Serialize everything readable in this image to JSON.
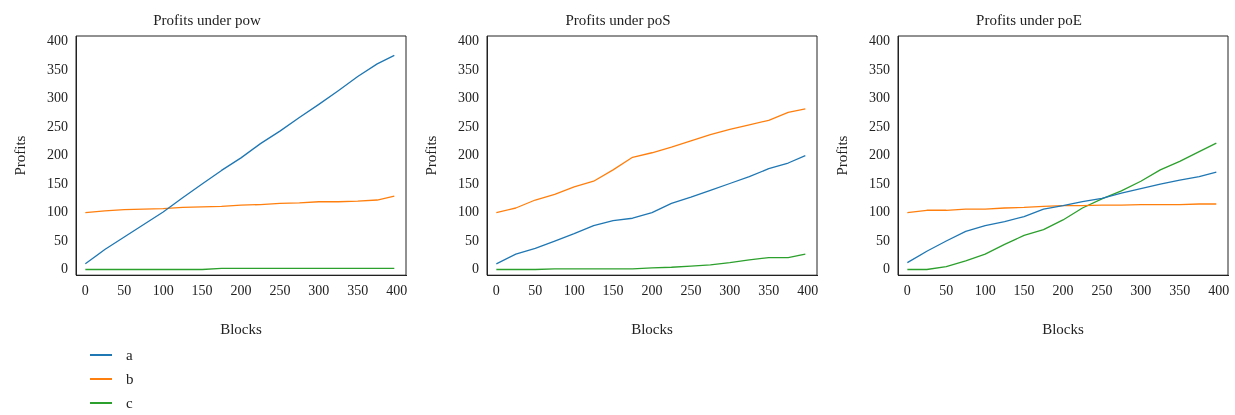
{
  "chart_data": [
    {
      "type": "line",
      "title": "Profits under pow",
      "xlabel": "Blocks",
      "ylabel": "Profits",
      "x": [
        0,
        25,
        50,
        75,
        100,
        125,
        150,
        175,
        200,
        225,
        250,
        275,
        300,
        325,
        350,
        375,
        397
      ],
      "xlim": [
        -12,
        412
      ],
      "ylim": [
        -10,
        410
      ],
      "xticks": [
        0,
        50,
        100,
        150,
        200,
        250,
        300,
        350,
        400
      ],
      "yticks": [
        0,
        50,
        100,
        150,
        200,
        250,
        300,
        350,
        400
      ],
      "grid": false,
      "legend": "bottom left",
      "series": [
        {
          "name": "a",
          "color": "#1f77b4",
          "values": [
            10,
            35,
            57,
            79,
            101,
            126,
            150,
            174,
            196,
            221,
            243,
            267,
            290,
            314,
            339,
            361,
            376
          ]
        },
        {
          "name": "b",
          "color": "#ff7f0e",
          "values": [
            100,
            103,
            105,
            106,
            107,
            109,
            110,
            111,
            113,
            114,
            116,
            117,
            119,
            119,
            120,
            122,
            129
          ]
        },
        {
          "name": "c",
          "color": "#2ca02c",
          "values": [
            0,
            0,
            0,
            0,
            0,
            0,
            0,
            2,
            2,
            2,
            2,
            2,
            2,
            2,
            2,
            2,
            2
          ]
        }
      ]
    },
    {
      "type": "line",
      "title": "Profits under poS",
      "xlabel": "Blocks",
      "ylabel": "Profits",
      "x": [
        0,
        25,
        50,
        75,
        100,
        125,
        150,
        175,
        200,
        225,
        250,
        275,
        300,
        325,
        350,
        375,
        397
      ],
      "xlim": [
        -12,
        412
      ],
      "ylim": [
        -10,
        410
      ],
      "xticks": [
        0,
        50,
        100,
        150,
        200,
        250,
        300,
        350,
        400
      ],
      "yticks": [
        0,
        50,
        100,
        150,
        200,
        250,
        300,
        350,
        400
      ],
      "grid": false,
      "series": [
        {
          "color": "#1f77b4",
          "values": [
            10,
            27,
            37,
            50,
            63,
            77,
            86,
            90,
            100,
            116,
            127,
            139,
            151,
            163,
            177,
            187,
            200
          ]
        },
        {
          "color": "#ff7f0e",
          "values": [
            100,
            108,
            122,
            132,
            145,
            155,
            175,
            197,
            205,
            215,
            226,
            237,
            246,
            254,
            262,
            276,
            282
          ]
        },
        {
          "color": "#2ca02c",
          "values": [
            0,
            0,
            0,
            1,
            1,
            1,
            1,
            1,
            3,
            4,
            6,
            8,
            12,
            17,
            21,
            21,
            27
          ]
        }
      ]
    },
    {
      "type": "line",
      "title": "Profits under poE",
      "xlabel": "Blocks",
      "ylabel": "Profits",
      "x": [
        0,
        25,
        50,
        75,
        100,
        125,
        150,
        175,
        200,
        225,
        250,
        275,
        300,
        325,
        350,
        375,
        397
      ],
      "xlim": [
        -12,
        412
      ],
      "ylim": [
        -10,
        410
      ],
      "xticks": [
        0,
        50,
        100,
        150,
        200,
        250,
        300,
        350,
        400
      ],
      "yticks": [
        0,
        50,
        100,
        150,
        200,
        250,
        300,
        350,
        400
      ],
      "grid": false,
      "series": [
        {
          "color": "#1f77b4",
          "values": [
            12,
            32,
            50,
            67,
            77,
            84,
            93,
            106,
            112,
            119,
            125,
            134,
            142,
            150,
            157,
            163,
            171
          ]
        },
        {
          "color": "#ff7f0e",
          "values": [
            100,
            104,
            104,
            106,
            106,
            108,
            109,
            111,
            112,
            112,
            113,
            113,
            114,
            114,
            114,
            115,
            115
          ]
        },
        {
          "color": "#2ca02c",
          "values": [
            0,
            0,
            5,
            15,
            27,
            44,
            60,
            70,
            87,
            108,
            124,
            138,
            155,
            175,
            190,
            207,
            222
          ]
        }
      ]
    }
  ]
}
